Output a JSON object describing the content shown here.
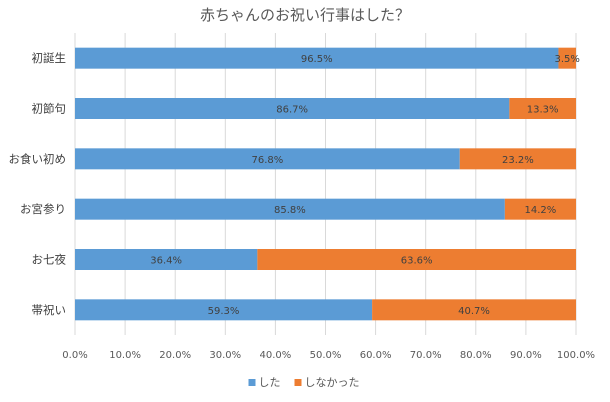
{
  "chart_data": {
    "type": "bar",
    "orientation": "horizontal",
    "stacked": true,
    "title": "赤ちゃんのお祝い行事はした？",
    "categories": [
      "初誕生",
      "初節句",
      "お食い初め",
      "お宮参り",
      "お七夜",
      "帯祝い"
    ],
    "series": [
      {
        "name": "した",
        "color": "#5b9bd5",
        "values": [
          96.5,
          86.7,
          76.8,
          85.8,
          36.4,
          59.3
        ],
        "labels": [
          "96.5%",
          "86.7%",
          "76.8%",
          "85.8%",
          "36.4%",
          "59.3%"
        ]
      },
      {
        "name": "しなかった",
        "color": "#ed7d31",
        "values": [
          3.5,
          13.3,
          23.2,
          14.2,
          63.6,
          40.7
        ],
        "labels": [
          "3.5%",
          "13.3%",
          "23.2%",
          "14.2%",
          "63.6%",
          "40.7%"
        ]
      }
    ],
    "xlim": [
      0,
      100
    ],
    "xticks": [
      "0.0%",
      "10.0%",
      "20.0%",
      "30.0%",
      "40.0%",
      "50.0%",
      "60.0%",
      "70.0%",
      "80.0%",
      "90.0%",
      "100.0%"
    ],
    "grid": true,
    "legend_position": "bottom"
  }
}
